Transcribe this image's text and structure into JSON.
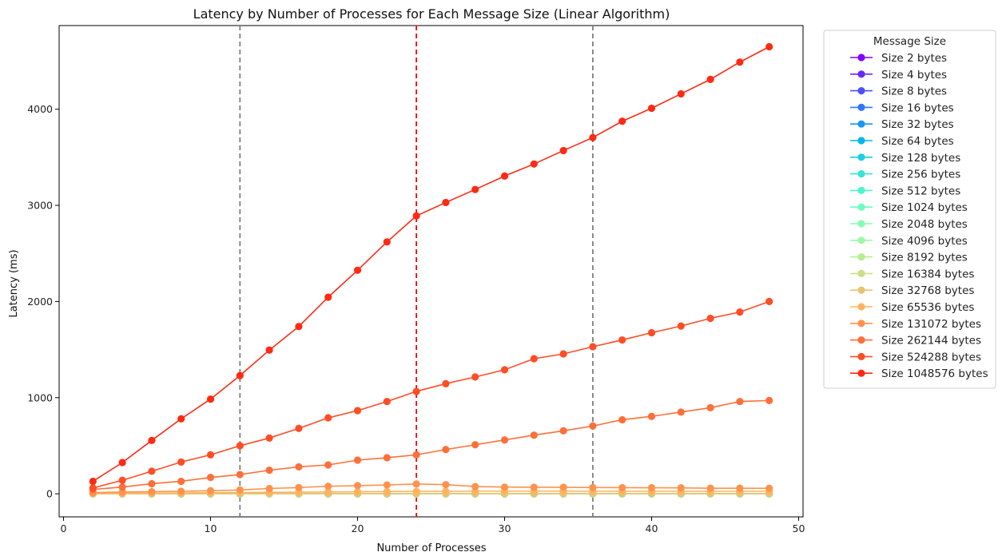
{
  "chart_data": {
    "type": "line",
    "title": "Latency by Number of Processes for Each Message Size (Linear Algorithm)",
    "xlabel": "Number of Processes",
    "ylabel": "Latency (ms)",
    "xlim": [
      -0.3,
      50.3
    ],
    "ylim": [
      -240,
      4870
    ],
    "xticks": [
      0,
      10,
      20,
      30,
      40,
      50
    ],
    "yticks": [
      0,
      1000,
      2000,
      3000,
      4000
    ],
    "grid": false,
    "legend_title": "Message Size",
    "legend_position": "outside-right",
    "vlines": [
      {
        "x": 12,
        "color": "#7f7f7f",
        "style": "dashed"
      },
      {
        "x": 24,
        "color": "#ff0000",
        "style": "dashed"
      },
      {
        "x": 36,
        "color": "#7f7f7f",
        "style": "dashed"
      }
    ],
    "x": [
      2,
      4,
      6,
      8,
      10,
      12,
      14,
      16,
      18,
      20,
      22,
      24,
      26,
      28,
      30,
      32,
      34,
      36,
      38,
      40,
      42,
      44,
      46,
      48
    ],
    "series": [
      {
        "name": "Size 2 bytes",
        "color": "#8000ff",
        "values": [
          0,
          0,
          0,
          0,
          0,
          0,
          0,
          0,
          0,
          0,
          0,
          0,
          0,
          0,
          0,
          0,
          0,
          0,
          0,
          0,
          0,
          0,
          0,
          0
        ]
      },
      {
        "name": "Size 4 bytes",
        "color": "#6629fe",
        "values": [
          0,
          0,
          0,
          0,
          0,
          0,
          0,
          0,
          0,
          0,
          0,
          0,
          0,
          0,
          0,
          0,
          0,
          0,
          0,
          0,
          0,
          0,
          0,
          0
        ]
      },
      {
        "name": "Size 8 bytes",
        "color": "#4c50fc",
        "values": [
          0,
          0,
          0,
          0,
          0,
          0,
          0,
          0,
          0,
          0,
          0,
          0,
          0,
          0,
          0,
          0,
          0,
          0,
          0,
          0,
          0,
          0,
          0,
          0
        ]
      },
      {
        "name": "Size 16 bytes",
        "color": "#3176f8",
        "values": [
          0,
          0,
          0,
          0,
          0,
          0,
          0,
          0,
          0,
          0,
          0,
          0,
          0,
          0,
          0,
          0,
          0,
          0,
          0,
          0,
          0,
          0,
          0,
          0
        ]
      },
      {
        "name": "Size 32 bytes",
        "color": "#1996f3",
        "values": [
          0,
          0,
          0,
          0,
          0,
          0,
          0,
          0,
          0,
          0,
          0,
          0,
          0,
          0,
          0,
          0,
          0,
          0,
          0,
          0,
          0,
          0,
          0,
          0
        ]
      },
      {
        "name": "Size 64 bytes",
        "color": "#00b5eb",
        "values": [
          0,
          0,
          0,
          0,
          0,
          0,
          0,
          0,
          0,
          0,
          0,
          0,
          0,
          0,
          0,
          0,
          0,
          0,
          0,
          0,
          0,
          0,
          0,
          0
        ]
      },
      {
        "name": "Size 128 bytes",
        "color": "#1acee3",
        "values": [
          0,
          0,
          0,
          0,
          0,
          0,
          0,
          0,
          0,
          0,
          0,
          0,
          0,
          0,
          0,
          0,
          0,
          0,
          0,
          0,
          0,
          0,
          0,
          0
        ]
      },
      {
        "name": "Size 256 bytes",
        "color": "#36e4d8",
        "values": [
          0,
          0,
          0,
          0,
          0,
          0,
          0,
          0,
          0,
          0,
          0,
          0,
          0,
          0,
          0,
          0,
          0,
          0,
          0,
          0,
          0,
          0,
          0,
          0
        ]
      },
      {
        "name": "Size 512 bytes",
        "color": "#4ff4cd",
        "values": [
          0,
          0,
          0,
          0,
          0,
          0,
          0,
          0,
          0,
          0,
          0,
          0,
          0,
          0,
          0,
          0,
          0,
          0,
          0,
          0,
          0,
          0,
          0,
          0
        ]
      },
      {
        "name": "Size 1024 bytes",
        "color": "#6afcc0",
        "values": [
          0,
          0,
          0,
          0,
          0,
          0,
          0,
          0,
          0,
          0,
          0,
          0,
          0,
          0,
          0,
          0,
          0,
          0,
          0,
          0,
          0,
          0,
          0,
          0
        ]
      },
      {
        "name": "Size 2048 bytes",
        "color": "#84feb2",
        "values": [
          0,
          0,
          0,
          0,
          0,
          0,
          0,
          0,
          0,
          0,
          0,
          0,
          0,
          0,
          0,
          0,
          0,
          0,
          0,
          0,
          0,
          0,
          0,
          0
        ]
      },
      {
        "name": "Size 4096 bytes",
        "color": "#9cf9a4",
        "values": [
          0,
          0,
          0,
          0,
          0,
          0,
          0,
          0,
          0,
          0,
          0,
          0,
          0,
          0,
          0,
          0,
          0,
          0,
          0,
          0,
          0,
          0,
          0,
          0
        ]
      },
      {
        "name": "Size 8192 bytes",
        "color": "#b6ee93",
        "values": [
          0,
          0,
          0,
          0,
          0,
          0,
          0,
          0,
          0,
          0,
          0,
          0,
          0,
          0,
          0,
          0,
          0,
          0,
          0,
          0,
          0,
          0,
          0,
          0
        ]
      },
      {
        "name": "Size 16384 bytes",
        "color": "#cedc83",
        "values": [
          1,
          1,
          1,
          1,
          1,
          1,
          1,
          1,
          1,
          1,
          1,
          1,
          1,
          1,
          1,
          1,
          1,
          1,
          1,
          1,
          1,
          1,
          1,
          1
        ]
      },
      {
        "name": "Size 32768 bytes",
        "color": "#e6c471",
        "values": [
          2,
          2,
          2,
          2,
          3,
          3,
          3,
          3,
          3,
          3,
          3,
          3,
          3,
          3,
          3,
          3,
          3,
          3,
          3,
          3,
          3,
          3,
          3,
          3
        ]
      },
      {
        "name": "Size 65536 bytes",
        "color": "#ffb360",
        "values": [
          4,
          5,
          7,
          9,
          11,
          13,
          15,
          17,
          19,
          21,
          23,
          25,
          26,
          27,
          27,
          27,
          27,
          26,
          26,
          26,
          26,
          26,
          26,
          26
        ]
      },
      {
        "name": "Size 131072 bytes",
        "color": "#ff924d",
        "values": [
          12,
          18,
          22,
          26,
          32,
          40,
          55,
          65,
          78,
          85,
          92,
          102,
          95,
          75,
          70,
          68,
          68,
          65,
          64,
          63,
          62,
          58,
          58,
          57
        ]
      },
      {
        "name": "Size 262144 bytes",
        "color": "#ff6f39",
        "values": [
          45,
          70,
          105,
          130,
          170,
          200,
          245,
          280,
          300,
          350,
          375,
          405,
          460,
          510,
          560,
          610,
          655,
          705,
          770,
          805,
          850,
          895,
          960,
          970
        ]
      },
      {
        "name": "Size 524288 bytes",
        "color": "#ff4d26",
        "values": [
          60,
          140,
          235,
          330,
          405,
          500,
          580,
          680,
          790,
          865,
          960,
          1065,
          1145,
          1215,
          1290,
          1405,
          1455,
          1530,
          1600,
          1675,
          1745,
          1825,
          1890,
          2000
        ]
      },
      {
        "name": "Size 1048576 bytes",
        "color": "#ff2a13",
        "values": [
          130,
          325,
          555,
          780,
          985,
          1230,
          1495,
          1740,
          2045,
          2325,
          2620,
          2890,
          3030,
          3165,
          3305,
          3430,
          3570,
          3705,
          3875,
          4010,
          4160,
          4310,
          4490,
          4650
        ]
      }
    ]
  }
}
